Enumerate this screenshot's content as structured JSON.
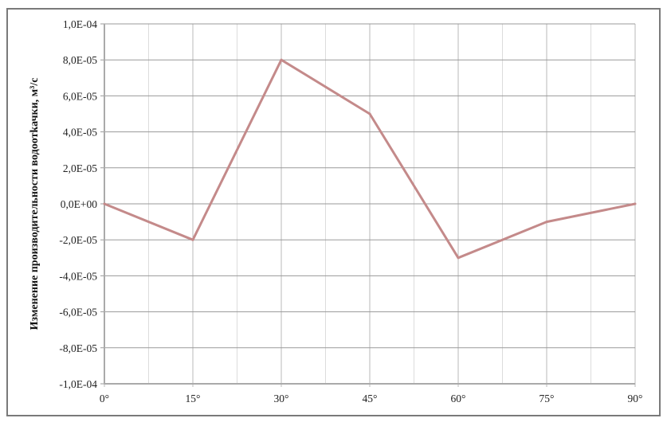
{
  "chart_data": {
    "type": "line",
    "title": "",
    "xlabel": "",
    "ylabel": "Изменение производительности водоотkачки, м³/с",
    "categories": [
      "0°",
      "15°",
      "30°",
      "45°",
      "60°",
      "75°",
      "90°"
    ],
    "x": [
      0,
      15,
      30,
      45,
      60,
      75,
      90
    ],
    "series": [
      {
        "values": [
          0,
          -2e-05,
          8e-05,
          5e-05,
          -3e-05,
          -1e-05,
          0
        ],
        "color": "#c48a8a"
      }
    ],
    "ylim": [
      -0.0001,
      0.0001
    ],
    "xlim": [
      0,
      90
    ],
    "yticks": [
      {
        "value": 0.0001,
        "label": "1,0E-04"
      },
      {
        "value": 8e-05,
        "label": "8,0E-05"
      },
      {
        "value": 6e-05,
        "label": "6,0E-05"
      },
      {
        "value": 4e-05,
        "label": "4,0E-05"
      },
      {
        "value": 2e-05,
        "label": "2,0E-05"
      },
      {
        "value": 0,
        "label": "0,0E+00"
      },
      {
        "value": -2e-05,
        "label": "-2,0E-05"
      },
      {
        "value": -4e-05,
        "label": "-4,0E-05"
      },
      {
        "value": -6e-05,
        "label": "-6,0E-05"
      },
      {
        "value": -8e-05,
        "label": "-8,0E-05"
      },
      {
        "value": -0.0001,
        "label": "-1,0E-04"
      }
    ],
    "grid": true,
    "legend": "none"
  }
}
